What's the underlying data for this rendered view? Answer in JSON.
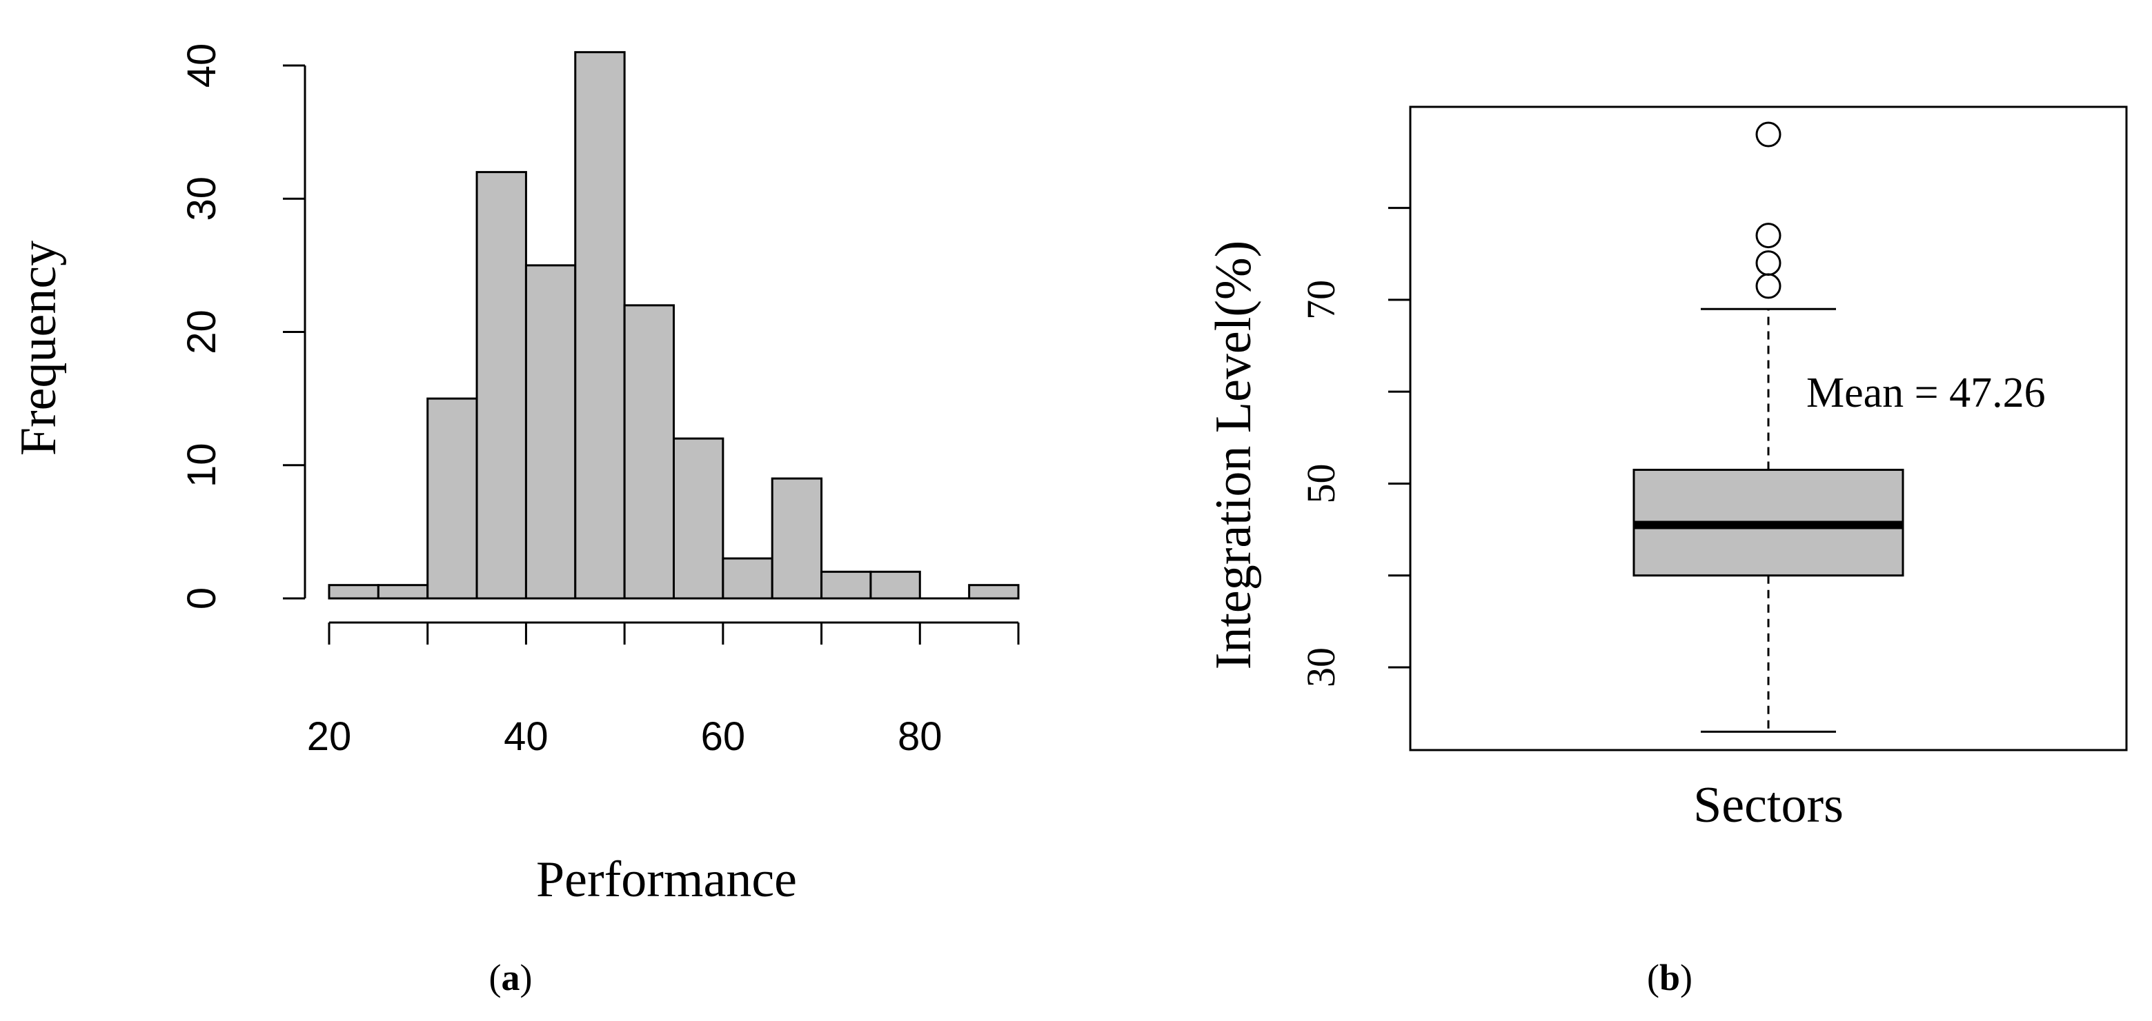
{
  "chart_data": [
    {
      "type": "histogram",
      "panel_label": "(a)",
      "panel_letter": "a",
      "xlabel": "Performance",
      "ylabel": "Frequency",
      "bin_width": 5,
      "bins": [
        {
          "start": 20,
          "end": 25,
          "count": 1
        },
        {
          "start": 25,
          "end": 30,
          "count": 1
        },
        {
          "start": 30,
          "end": 35,
          "count": 15
        },
        {
          "start": 35,
          "end": 40,
          "count": 32
        },
        {
          "start": 40,
          "end": 45,
          "count": 25
        },
        {
          "start": 45,
          "end": 50,
          "count": 41
        },
        {
          "start": 50,
          "end": 55,
          "count": 22
        },
        {
          "start": 55,
          "end": 60,
          "count": 12
        },
        {
          "start": 60,
          "end": 65,
          "count": 3
        },
        {
          "start": 65,
          "end": 70,
          "count": 9
        },
        {
          "start": 70,
          "end": 75,
          "count": 2
        },
        {
          "start": 75,
          "end": 80,
          "count": 2
        },
        {
          "start": 80,
          "end": 85,
          "count": 0
        },
        {
          "start": 85,
          "end": 90,
          "count": 1
        }
      ],
      "xlim": [
        20,
        90
      ],
      "ylim": [
        0,
        40
      ],
      "x_ticks": [
        20,
        40,
        60,
        80
      ],
      "x_minor_ticks": [
        20,
        30,
        40,
        50,
        60,
        70,
        80,
        90
      ],
      "y_ticks": [
        0,
        10,
        20,
        30,
        40
      ],
      "bar_color": "#bfbfbf",
      "grid": false
    },
    {
      "type": "boxplot",
      "panel_label": "(b)",
      "panel_letter": "b",
      "xlabel": "Sectors",
      "ylabel": "Integration Level(%)",
      "annotation": "Mean = 47.26",
      "box": {
        "whisker_low": 23,
        "q1": 40,
        "median": 45.5,
        "q3": 51.5,
        "whisker_high": 69
      },
      "outliers": [
        71.5,
        74,
        77,
        88
      ],
      "ylim": [
        21,
        91
      ],
      "y_ticks": [
        30,
        50,
        70
      ],
      "y_minor_ticks": [
        30,
        40,
        50,
        60,
        70,
        80
      ],
      "box_color": "#bfbfbf",
      "grid": false
    }
  ]
}
